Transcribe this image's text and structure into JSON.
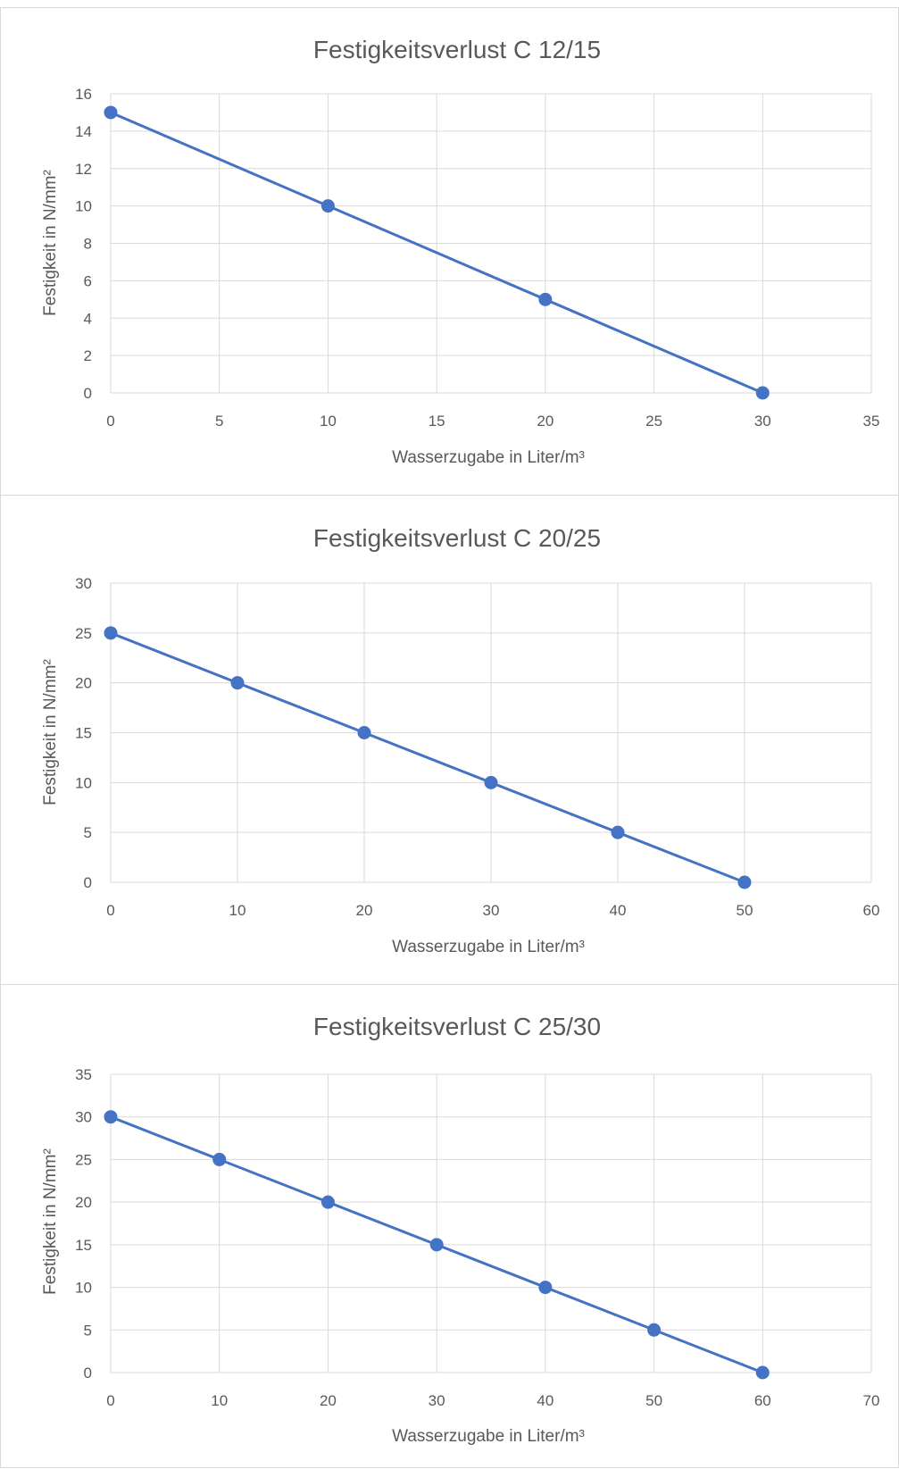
{
  "chart_data": [
    {
      "type": "line",
      "title": "Festigkeitsverlust C 12/15",
      "xlabel": "Wasserzugabe in Liter/m³",
      "ylabel": "Festigkeit in N/mm²",
      "xlim": [
        0,
        35
      ],
      "ylim": [
        0,
        16
      ],
      "xticks": [
        0,
        5,
        10,
        15,
        20,
        25,
        30,
        35
      ],
      "yticks": [
        0,
        2,
        4,
        6,
        8,
        10,
        12,
        14,
        16
      ],
      "grid": true,
      "legend": "none",
      "series": [
        {
          "x": [
            0,
            10,
            20,
            30
          ],
          "y": [
            15,
            10,
            5,
            0
          ],
          "color": "#4472c4"
        }
      ]
    },
    {
      "type": "line",
      "title": "Festigkeitsverlust C 20/25",
      "xlabel": "Wasserzugabe in Liter/m³",
      "ylabel": "Festigkeit in N/mm²",
      "xlim": [
        0,
        60
      ],
      "ylim": [
        0,
        30
      ],
      "xticks": [
        0,
        10,
        20,
        30,
        40,
        50,
        60
      ],
      "yticks": [
        0,
        5,
        10,
        15,
        20,
        25,
        30
      ],
      "grid": true,
      "legend": "none",
      "series": [
        {
          "x": [
            0,
            10,
            20,
            30,
            40,
            50
          ],
          "y": [
            25,
            20,
            15,
            10,
            5,
            0
          ],
          "color": "#4472c4"
        }
      ]
    },
    {
      "type": "line",
      "title": "Festigkeitsverlust C 25/30",
      "xlabel": "Wasserzugabe in Liter/m³",
      "ylabel": "Festigkeit in N/mm²",
      "xlim": [
        0,
        70
      ],
      "ylim": [
        0,
        35
      ],
      "xticks": [
        0,
        10,
        20,
        30,
        40,
        50,
        60,
        70
      ],
      "yticks": [
        0,
        5,
        10,
        15,
        20,
        25,
        30,
        35
      ],
      "grid": true,
      "legend": "none",
      "series": [
        {
          "x": [
            0,
            10,
            20,
            30,
            40,
            50,
            60
          ],
          "y": [
            30,
            25,
            20,
            15,
            10,
            5,
            0
          ],
          "color": "#4472c4"
        }
      ]
    }
  ]
}
